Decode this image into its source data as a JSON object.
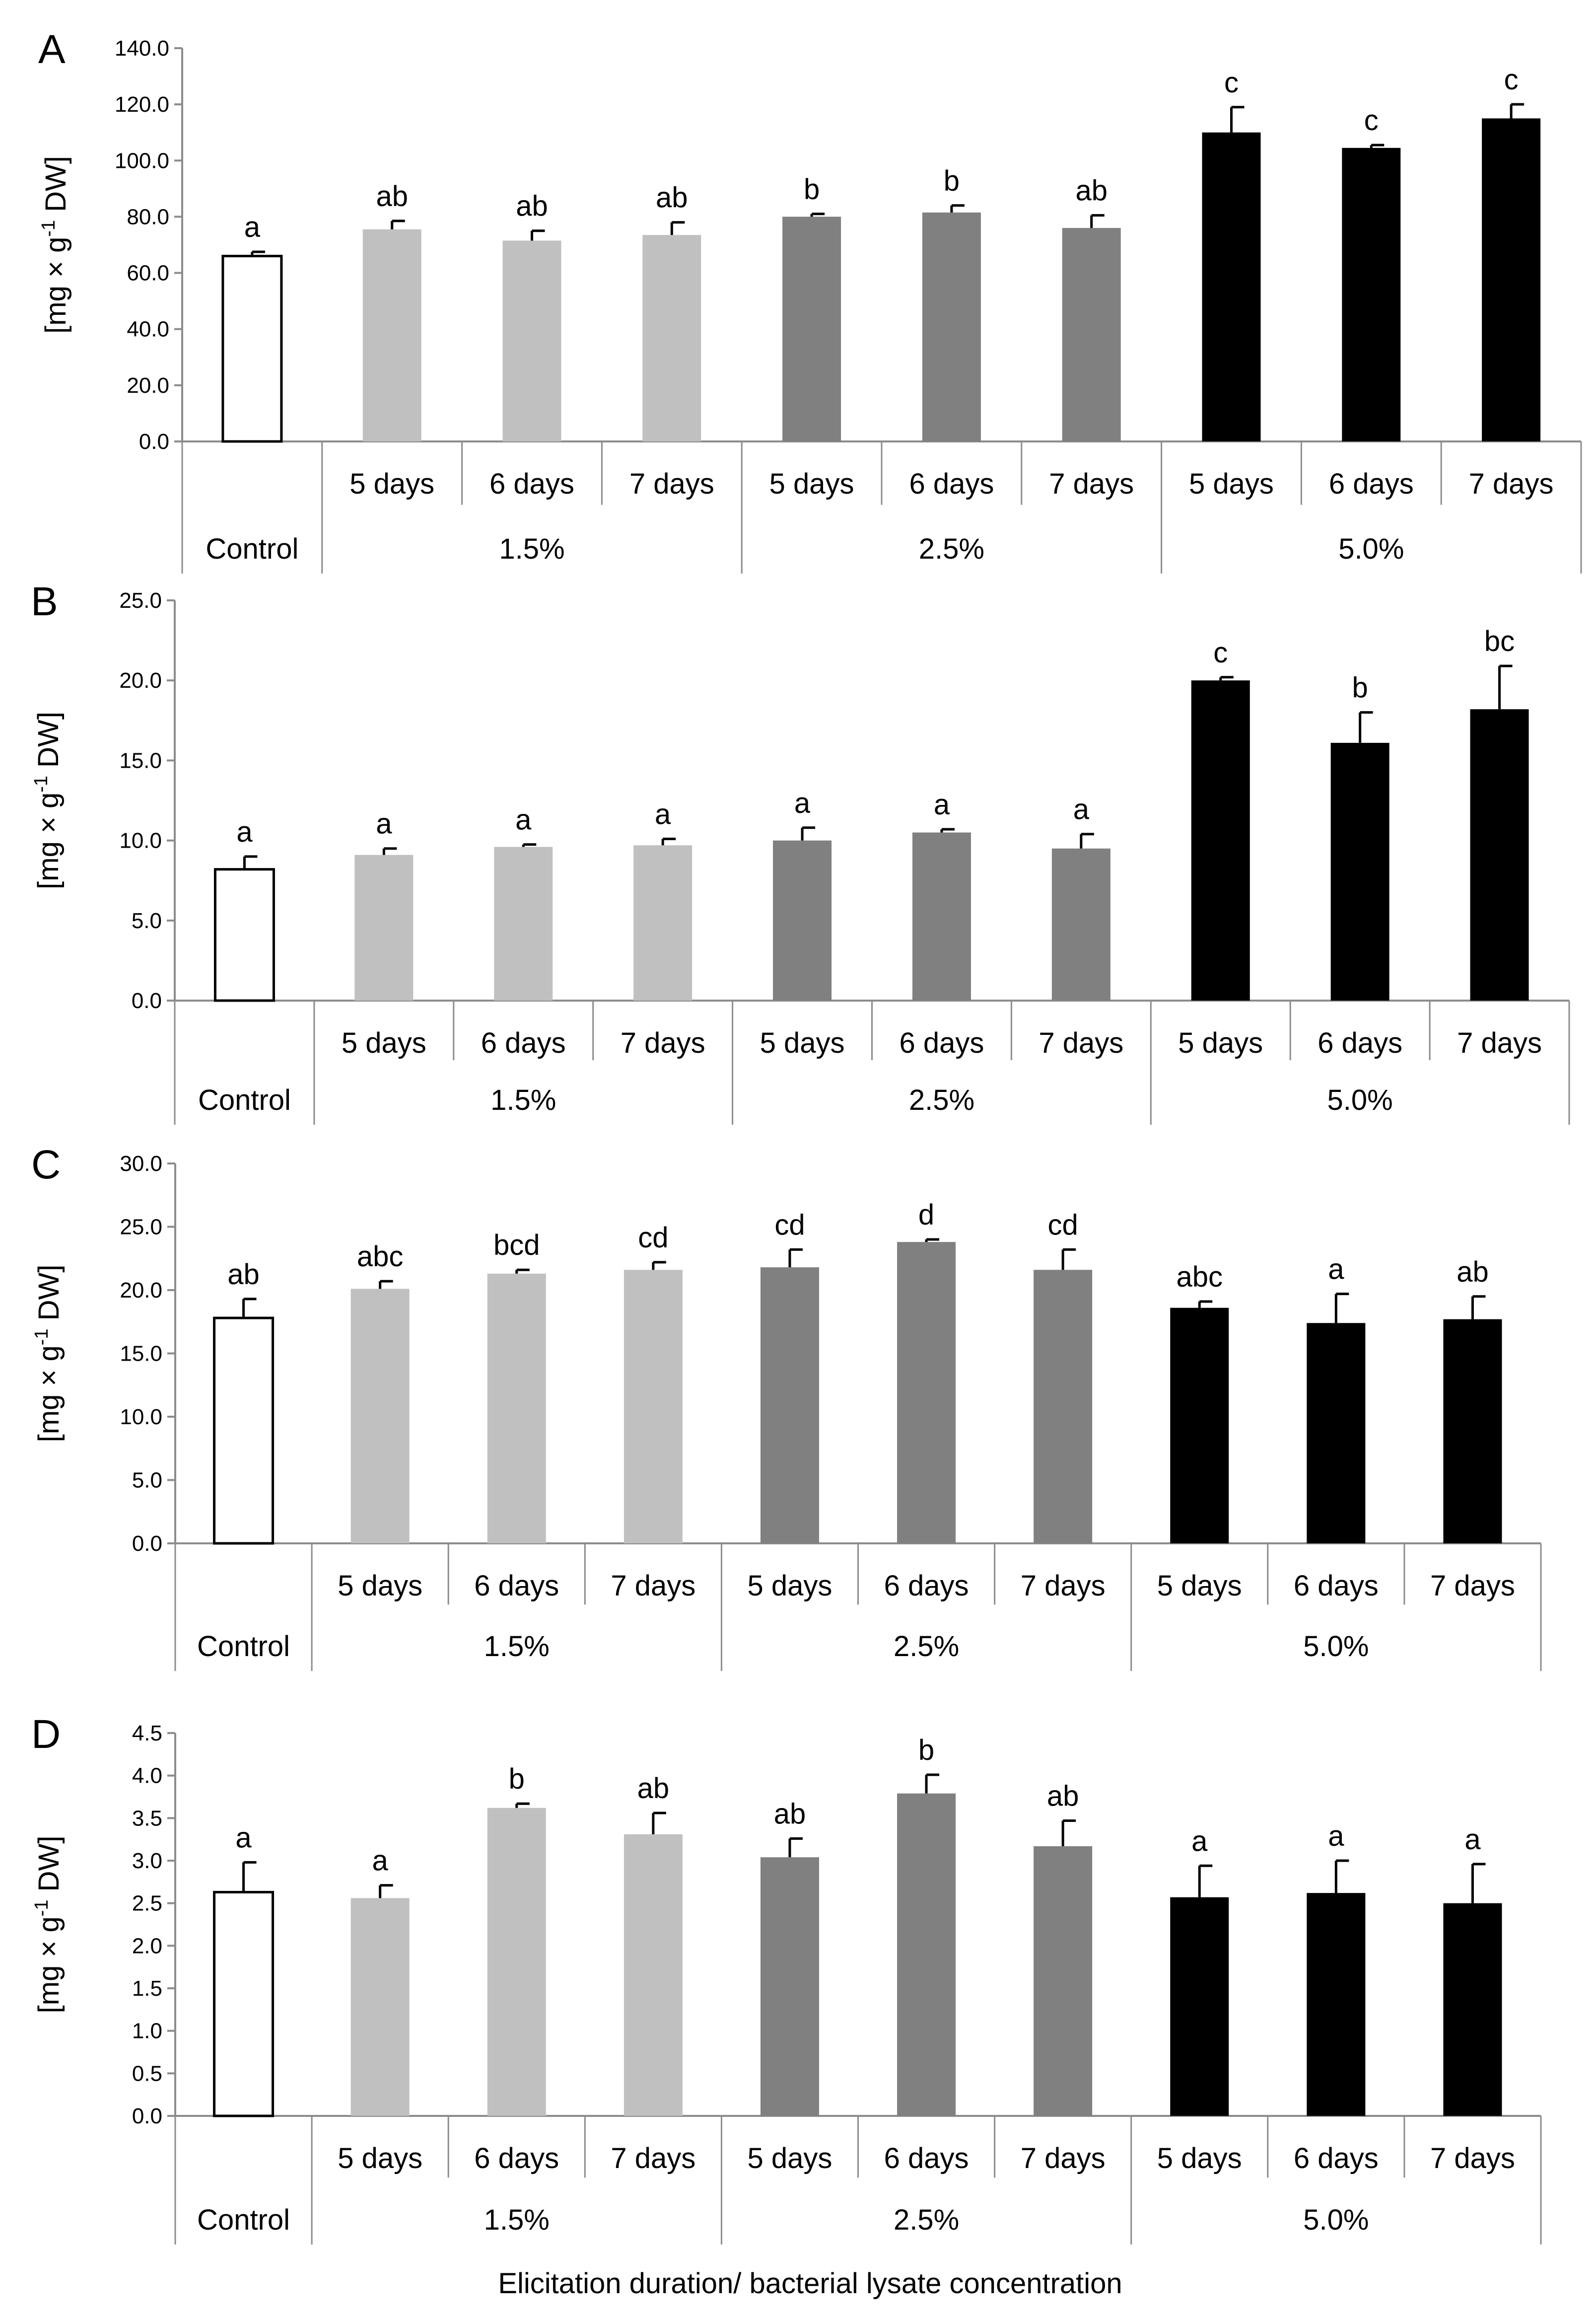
{
  "xlabel": "Elicitation duration/ bacterial lysate concentration",
  "ylabel": "[mg × g-1 DW]",
  "ylabel_parts": {
    "main": "[mg × g",
    "sup": "-1",
    "tail": " DW]"
  },
  "group_labels": [
    "Control",
    "1.5%",
    "2.5%",
    "5.0%"
  ],
  "bar_groups": [
    "Control",
    "1.5%",
    "1.5%",
    "1.5%",
    "2.5%",
    "2.5%",
    "2.5%",
    "5.0%",
    "5.0%",
    "5.0%"
  ],
  "day_labels": [
    "",
    "5 days",
    "6 days",
    "7 days",
    "5 days",
    "6 days",
    "7 days",
    "5 days",
    "6 days",
    "7 days"
  ],
  "colors": {
    "Control": "#ffffff",
    "1.5%": "#c0c0c0",
    "2.5%": "#808080",
    "5.0%": "#000000"
  },
  "chart_data": [
    {
      "type": "bar",
      "panel": "A",
      "ylabel": "[mg × g-1 DW]",
      "ylim": [
        0,
        140
      ],
      "yticks": [
        "0.0",
        "20.0",
        "40.0",
        "60.0",
        "80.0",
        "100.0",
        "120.0",
        "140.0"
      ],
      "categories": [
        "Control",
        "1.5% 5 days",
        "1.5% 6 days",
        "1.5% 7 days",
        "2.5% 5 days",
        "2.5% 6 days",
        "2.5% 7 days",
        "5.0% 5 days",
        "5.0% 6 days",
        "5.0% 7 days"
      ],
      "values": [
        66,
        75.5,
        71.5,
        73.5,
        80,
        81.5,
        76,
        110,
        104.5,
        115
      ],
      "errors": [
        1.5,
        3,
        3.5,
        4.5,
        1,
        2.5,
        4.5,
        9,
        1,
        5
      ],
      "significance": [
        "a",
        "ab",
        "ab",
        "ab",
        "b",
        "b",
        "ab",
        "c",
        "c",
        "c"
      ]
    },
    {
      "type": "bar",
      "panel": "B",
      "ylabel": "[mg × g-1 DW]",
      "ylim": [
        0,
        25
      ],
      "yticks": [
        "0.0",
        "5.0",
        "10.0",
        "15.0",
        "20.0",
        "25.0"
      ],
      "categories": [
        "Control",
        "1.5% 5 days",
        "1.5% 6 days",
        "1.5% 7 days",
        "2.5% 5 days",
        "2.5% 6 days",
        "2.5% 7 days",
        "5.0% 5 days",
        "5.0% 6 days",
        "5.0% 7 days"
      ],
      "values": [
        8.2,
        9.1,
        9.6,
        9.7,
        10,
        10.5,
        9.5,
        20,
        16.1,
        18.2
      ],
      "errors": [
        0.8,
        0.4,
        0.15,
        0.4,
        0.8,
        0.2,
        0.9,
        0.2,
        1.9,
        2.7
      ],
      "significance": [
        "a",
        "a",
        "a",
        "a",
        "a",
        "a",
        "a",
        "c",
        "b",
        "bc"
      ]
    },
    {
      "type": "bar",
      "panel": "C",
      "ylabel": "[mg × g-1 DW]",
      "ylim": [
        0,
        30
      ],
      "yticks": [
        "0.0",
        "5.0",
        "10.0",
        "15.0",
        "20.0",
        "25.0",
        "30.0"
      ],
      "categories": [
        "Control",
        "1.5% 5 days",
        "1.5% 6 days",
        "1.5% 7 days",
        "2.5% 5 days",
        "2.5% 6 days",
        "2.5% 7 days",
        "5.0% 5 days",
        "5.0% 6 days",
        "5.0% 7 days"
      ],
      "values": [
        17.8,
        20.1,
        21.3,
        21.6,
        21.8,
        23.8,
        21.6,
        18.6,
        17.4,
        17.7
      ],
      "errors": [
        1.5,
        0.6,
        0.3,
        0.6,
        1.4,
        0.2,
        1.6,
        0.5,
        2.3,
        1.8
      ],
      "significance": [
        "ab",
        "abc",
        "bcd",
        "cd",
        "cd",
        "d",
        "cd",
        "abc",
        "a",
        "ab"
      ]
    },
    {
      "type": "bar",
      "panel": "D",
      "ylabel": "[mg × g-1 DW]",
      "ylim": [
        0,
        4.5
      ],
      "yticks": [
        "0.0",
        "0.5",
        "1.0",
        "1.5",
        "2.0",
        "2.5",
        "3.0",
        "3.5",
        "4.0",
        "4.5"
      ],
      "categories": [
        "Control",
        "1.5% 5 days",
        "1.5% 6 days",
        "1.5% 7 days",
        "2.5% 5 days",
        "2.5% 6 days",
        "2.5% 7 days",
        "5.0% 5 days",
        "5.0% 6 days",
        "5.0% 7 days"
      ],
      "values": [
        2.63,
        2.56,
        3.62,
        3.31,
        3.04,
        3.79,
        3.17,
        2.57,
        2.62,
        2.5
      ],
      "errors": [
        0.35,
        0.15,
        0.05,
        0.25,
        0.22,
        0.22,
        0.3,
        0.37,
        0.38,
        0.46
      ],
      "significance": [
        "a",
        "a",
        "b",
        "ab",
        "ab",
        "b",
        "ab",
        "a",
        "a",
        "a"
      ]
    }
  ]
}
